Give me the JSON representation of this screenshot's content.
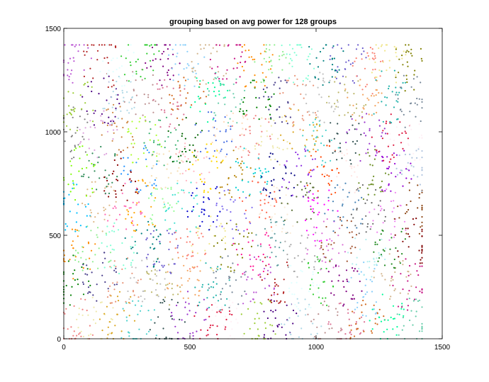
{
  "chart_data": {
    "type": "scatter",
    "title": "grouping based on avg power for 128 groups",
    "xlabel": "",
    "ylabel": "",
    "xlim": [
      0,
      1500
    ],
    "ylim": [
      0,
      1500
    ],
    "xticks": [
      "0",
      "500",
      "1000",
      "1500"
    ],
    "yticks": [
      "0",
      "500",
      "1000",
      "1500"
    ],
    "grid": false,
    "legend": "none",
    "groups_count": 128,
    "points_per_group": 26,
    "data_extent": {
      "x": [
        0,
        1420
      ],
      "y": [
        0,
        1420
      ]
    },
    "group_arrangement": "clusters on a 16 x 8 grid",
    "palette": [
      "#f08080",
      "#ffb6c1",
      "#ff69b4",
      "#c71585",
      "#db7093",
      "#dda0dd",
      "#ee82ee",
      "#da70d6",
      "#ba55d3",
      "#9932cc",
      "#8a2be2",
      "#7b68ee",
      "#6a5acd",
      "#483d8b",
      "#4169e1",
      "#1e90ff",
      "#00bfff",
      "#87cefa",
      "#add8e6",
      "#b0c4de",
      "#4682b4",
      "#5f9ea0",
      "#20b2aa",
      "#48d1cc",
      "#00ced1",
      "#40e0d0",
      "#7fffd4",
      "#66cdaa",
      "#3cb371",
      "#2e8b57",
      "#228b22",
      "#32cd32",
      "#9acd32",
      "#6b8e23",
      "#556b2f",
      "#808000",
      "#bdb76b",
      "#eee8aa",
      "#ffd700",
      "#ffa500",
      "#ff8c00",
      "#d2691e",
      "#cd853f",
      "#8b4513",
      "#a0522d",
      "#b22222",
      "#dc143c",
      "#ff4500",
      "#ff6347",
      "#fa8072",
      "#e9967a",
      "#ffdab9",
      "#f5deb3",
      "#deb887",
      "#d2b48c",
      "#bc8f8f",
      "#808080",
      "#696969",
      "#a9a9a9",
      "#778899",
      "#2f4f4f",
      "#000080",
      "#0000cd",
      "#008080",
      "#008000",
      "#006400",
      "#8b0000",
      "#800000",
      "#800080",
      "#4b0082",
      "#9400d3",
      "#ff00ff",
      "#ff1493",
      "#f4a460",
      "#daa520",
      "#b8860b",
      "#98fb98",
      "#90ee90",
      "#00fa9a",
      "#adff2f",
      "#7cfc00",
      "#afeeee",
      "#e0ffff",
      "#fff0f5",
      "#ffe4e1",
      "#faebd7",
      "#f0e68c",
      "#c0c0c0"
    ]
  }
}
